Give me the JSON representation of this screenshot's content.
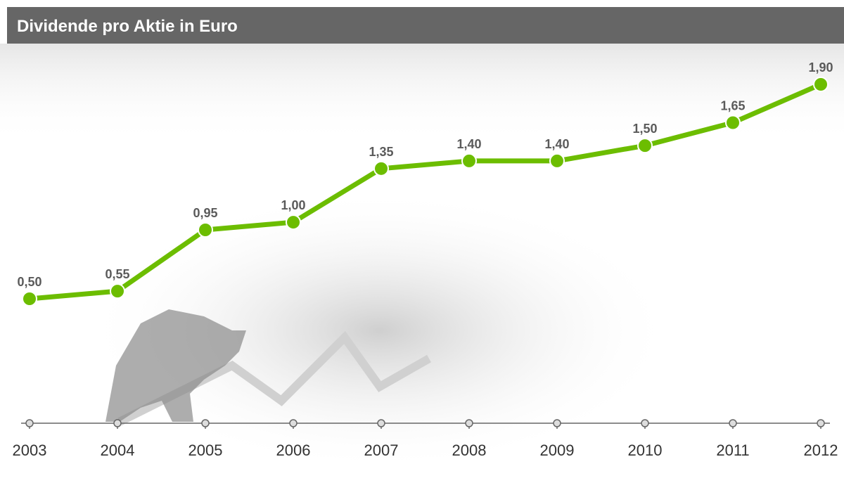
{
  "chart_data": {
    "type": "line",
    "title": "Dividende pro Aktie in Euro",
    "categories": [
      "2003",
      "2004",
      "2005",
      "2006",
      "2007",
      "2008",
      "2009",
      "2010",
      "2011",
      "2012"
    ],
    "values": [
      0.5,
      0.55,
      0.95,
      1.0,
      1.35,
      1.4,
      1.4,
      1.5,
      1.65,
      1.9
    ],
    "value_labels": [
      "0,50",
      "0,55",
      "0,95",
      "1,00",
      "1,35",
      "1,40",
      "1,40",
      "1,50",
      "1,65",
      "1,90"
    ],
    "color": "#6cbd00"
  }
}
